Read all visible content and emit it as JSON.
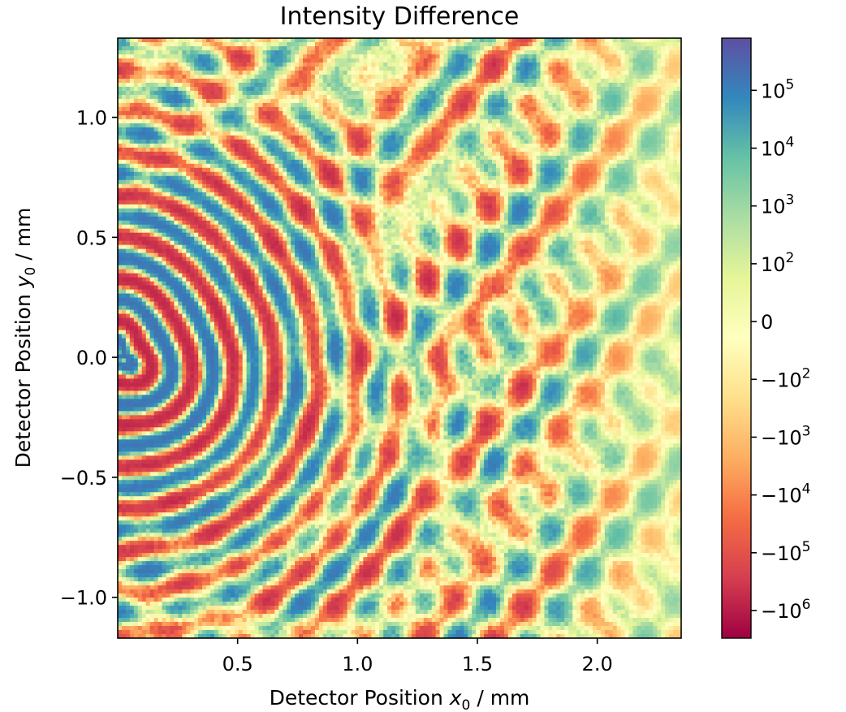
{
  "chart_data": {
    "type": "heatmap",
    "title": "Intensity Difference",
    "xlabel": {
      "prefix": "Detector Position ",
      "var": "x",
      "sub": "0",
      "suffix": " / mm"
    },
    "ylabel": {
      "prefix": "Detector Position ",
      "var": "y",
      "sub": "0",
      "suffix": " / mm"
    },
    "xlim": [
      0.0,
      2.35
    ],
    "ylim": [
      -1.17,
      1.33
    ],
    "xticks": [
      {
        "value": 0.5,
        "label": "0.5"
      },
      {
        "value": 1.0,
        "label": "1.0"
      },
      {
        "value": 1.5,
        "label": "1.5"
      },
      {
        "value": 2.0,
        "label": "2.0"
      }
    ],
    "yticks": [
      {
        "value": 1.0,
        "label": "1.0"
      },
      {
        "value": 0.5,
        "label": "0.5"
      },
      {
        "value": 0.0,
        "label": "0.0"
      },
      {
        "value": -0.5,
        "label": "−0.5"
      },
      {
        "value": -1.0,
        "label": "−1.0"
      }
    ],
    "colormap": "Spectral",
    "colormap_stops": [
      "#9e0142",
      "#d53e4f",
      "#f46d43",
      "#fdae61",
      "#fee08b",
      "#ffffbf",
      "#e6f598",
      "#abdda4",
      "#66c2a5",
      "#3288bd",
      "#5e4fa2"
    ],
    "color_scale": "symlog",
    "colorbar": {
      "range": [
        -3000000,
        800000
      ],
      "ticks": [
        {
          "value": 100000,
          "base": "10",
          "exp": "5"
        },
        {
          "value": 10000,
          "base": "10",
          "exp": "4"
        },
        {
          "value": 1000,
          "base": "10",
          "exp": "3"
        },
        {
          "value": 100,
          "base": "10",
          "exp": "2"
        },
        {
          "value": 0,
          "base": "0",
          "exp": ""
        },
        {
          "value": -100,
          "base": "−10",
          "exp": "2"
        },
        {
          "value": -1000,
          "base": "−10",
          "exp": "3"
        },
        {
          "value": -10000,
          "base": "−10",
          "exp": "4"
        },
        {
          "value": -100000,
          "base": "−10",
          "exp": "5"
        },
        {
          "value": -1000000,
          "base": "−10",
          "exp": "6"
        }
      ]
    },
    "pattern": {
      "description_source": "interference rings centred near the left edge",
      "ring_center": [
        0.0,
        0.0
      ],
      "ring_wavenumber_per_mm": 36,
      "grid_cols": 140,
      "grid_rows": 148
    }
  }
}
